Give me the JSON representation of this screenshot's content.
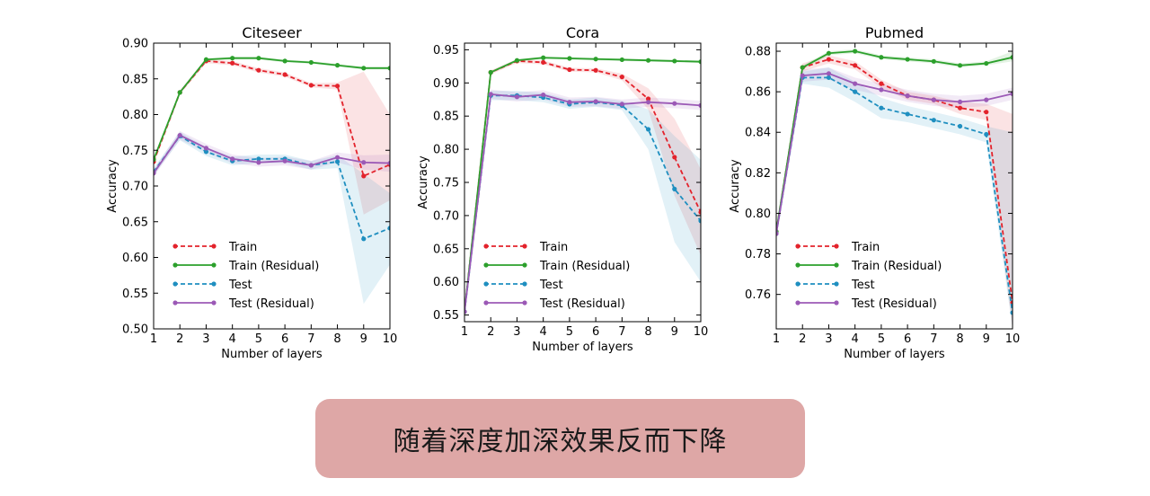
{
  "chart_data": [
    {
      "type": "line",
      "title": "Citeseer",
      "xlabel": "Number of layers",
      "ylabel": "Accuracy",
      "x": [
        1,
        2,
        3,
        4,
        5,
        6,
        7,
        8,
        9,
        10
      ],
      "xticks": [
        "1",
        "2",
        "3",
        "4",
        "5",
        "6",
        "7",
        "8",
        "9",
        "10"
      ],
      "ylim": [
        0.5,
        0.9
      ],
      "yticks": [
        0.5,
        0.55,
        0.6,
        0.65,
        0.7,
        0.75,
        0.8,
        0.85,
        0.9
      ],
      "ytick_labels": [
        "0.50",
        "0.55",
        "0.60",
        "0.65",
        "0.70",
        "0.75",
        "0.80",
        "0.85",
        "0.90"
      ],
      "legend_position": "lower-left",
      "series": [
        {
          "name": "Train",
          "color": "#e3232c",
          "style": "dashed",
          "values": [
            0.734,
            0.831,
            0.875,
            0.872,
            0.862,
            0.856,
            0.841,
            0.84,
            0.714,
            0.73
          ],
          "band_lower": [
            0.73,
            0.828,
            0.872,
            0.869,
            0.859,
            0.853,
            0.838,
            0.835,
            0.66,
            0.68
          ],
          "band_upper": [
            0.738,
            0.834,
            0.878,
            0.875,
            0.865,
            0.859,
            0.844,
            0.845,
            0.86,
            0.8
          ]
        },
        {
          "name": "Train (Residual)",
          "color": "#2ca02c",
          "style": "solid",
          "values": [
            0.737,
            0.831,
            0.877,
            0.879,
            0.879,
            0.875,
            0.873,
            0.869,
            0.865,
            0.865
          ],
          "band_lower": [
            0.735,
            0.829,
            0.875,
            0.877,
            0.877,
            0.873,
            0.871,
            0.867,
            0.863,
            0.863
          ],
          "band_upper": [
            0.739,
            0.833,
            0.879,
            0.881,
            0.881,
            0.877,
            0.875,
            0.871,
            0.867,
            0.867
          ]
        },
        {
          "name": "Test",
          "color": "#1f8fc0",
          "style": "dashed",
          "values": [
            0.72,
            0.77,
            0.748,
            0.735,
            0.738,
            0.738,
            0.729,
            0.734,
            0.626,
            0.641
          ],
          "band_lower": [
            0.715,
            0.764,
            0.742,
            0.729,
            0.732,
            0.732,
            0.723,
            0.725,
            0.535,
            0.59
          ],
          "band_upper": [
            0.725,
            0.776,
            0.754,
            0.741,
            0.744,
            0.744,
            0.735,
            0.743,
            0.717,
            0.69
          ]
        },
        {
          "name": "Test (Residual)",
          "color": "#9b59b6",
          "style": "solid",
          "values": [
            0.718,
            0.771,
            0.753,
            0.738,
            0.733,
            0.735,
            0.729,
            0.74,
            0.733,
            0.732
          ],
          "band_lower": [
            0.713,
            0.765,
            0.747,
            0.732,
            0.727,
            0.729,
            0.723,
            0.733,
            0.723,
            0.72
          ],
          "band_upper": [
            0.723,
            0.777,
            0.759,
            0.744,
            0.739,
            0.741,
            0.735,
            0.747,
            0.743,
            0.744
          ]
        }
      ]
    },
    {
      "type": "line",
      "title": "Cora",
      "xlabel": "Number of layers",
      "ylabel": "Accuracy",
      "x": [
        1,
        2,
        3,
        4,
        5,
        6,
        7,
        8,
        9,
        10
      ],
      "xticks": [
        "1",
        "2",
        "3",
        "4",
        "5",
        "6",
        "7",
        "8",
        "9",
        "10"
      ],
      "ylim": [
        0.54,
        0.96
      ],
      "yticks": [
        0.55,
        0.6,
        0.65,
        0.7,
        0.75,
        0.8,
        0.85,
        0.9,
        0.95
      ],
      "ytick_labels": [
        "0.55",
        "0.60",
        "0.65",
        "0.70",
        "0.75",
        "0.80",
        "0.85",
        "0.90",
        "0.95"
      ],
      "legend_position": "lower-left",
      "series": [
        {
          "name": "Train",
          "color": "#e3232c",
          "style": "dashed",
          "values": [
            0.555,
            0.916,
            0.933,
            0.931,
            0.92,
            0.919,
            0.909,
            0.876,
            0.788,
            0.705
          ],
          "band_lower": [
            0.552,
            0.913,
            0.93,
            0.928,
            0.917,
            0.916,
            0.904,
            0.86,
            0.73,
            0.64
          ],
          "band_upper": [
            0.558,
            0.919,
            0.936,
            0.934,
            0.923,
            0.922,
            0.914,
            0.892,
            0.846,
            0.77
          ]
        },
        {
          "name": "Train (Residual)",
          "color": "#2ca02c",
          "style": "solid",
          "values": [
            0.555,
            0.916,
            0.934,
            0.938,
            0.937,
            0.936,
            0.935,
            0.934,
            0.933,
            0.932
          ],
          "band_lower": [
            0.553,
            0.914,
            0.932,
            0.936,
            0.935,
            0.934,
            0.933,
            0.932,
            0.931,
            0.93
          ],
          "band_upper": [
            0.557,
            0.918,
            0.936,
            0.94,
            0.939,
            0.938,
            0.937,
            0.936,
            0.935,
            0.934
          ]
        },
        {
          "name": "Test",
          "color": "#1f8fc0",
          "style": "dashed",
          "values": [
            0.555,
            0.881,
            0.881,
            0.878,
            0.868,
            0.871,
            0.866,
            0.83,
            0.74,
            0.692
          ],
          "band_lower": [
            0.55,
            0.874,
            0.874,
            0.871,
            0.861,
            0.864,
            0.859,
            0.8,
            0.66,
            0.6
          ],
          "band_upper": [
            0.56,
            0.888,
            0.888,
            0.885,
            0.875,
            0.878,
            0.873,
            0.86,
            0.82,
            0.784
          ]
        },
        {
          "name": "Test (Residual)",
          "color": "#9b59b6",
          "style": "solid",
          "values": [
            0.555,
            0.883,
            0.879,
            0.882,
            0.871,
            0.872,
            0.868,
            0.871,
            0.869,
            0.866
          ],
          "band_lower": [
            0.55,
            0.876,
            0.872,
            0.875,
            0.864,
            0.865,
            0.861,
            0.864,
            0.862,
            0.859
          ],
          "band_upper": [
            0.56,
            0.89,
            0.886,
            0.889,
            0.878,
            0.879,
            0.875,
            0.878,
            0.876,
            0.873
          ]
        }
      ]
    },
    {
      "type": "line",
      "title": "Pubmed",
      "xlabel": "Number of layers",
      "ylabel": "Accuracy",
      "x": [
        1,
        2,
        3,
        4,
        5,
        6,
        7,
        8,
        9,
        10
      ],
      "xticks": [
        "1",
        "2",
        "3",
        "4",
        "5",
        "6",
        "7",
        "8",
        "9",
        "10"
      ],
      "ylim": [
        0.743,
        0.884
      ],
      "yticks": [
        0.76,
        0.78,
        0.8,
        0.82,
        0.84,
        0.86,
        0.88
      ],
      "ytick_labels": [
        "0.76",
        "0.78",
        "0.80",
        "0.82",
        "0.84",
        "0.86",
        "0.88"
      ],
      "legend_position": "lower-left",
      "series": [
        {
          "name": "Train",
          "color": "#e3232c",
          "style": "dashed",
          "values": [
            0.791,
            0.872,
            0.876,
            0.873,
            0.864,
            0.858,
            0.856,
            0.852,
            0.85,
            0.756
          ],
          "band_lower": [
            0.789,
            0.87,
            0.874,
            0.871,
            0.862,
            0.856,
            0.854,
            0.849,
            0.846,
            0.743
          ],
          "band_upper": [
            0.793,
            0.874,
            0.878,
            0.875,
            0.866,
            0.86,
            0.858,
            0.855,
            0.854,
            0.849
          ]
        },
        {
          "name": "Train (Residual)",
          "color": "#2ca02c",
          "style": "solid",
          "values": [
            0.791,
            0.872,
            0.879,
            0.88,
            0.877,
            0.876,
            0.875,
            0.873,
            0.874,
            0.877
          ],
          "band_lower": [
            0.79,
            0.871,
            0.878,
            0.879,
            0.876,
            0.875,
            0.874,
            0.872,
            0.873,
            0.875
          ],
          "band_upper": [
            0.792,
            0.873,
            0.88,
            0.881,
            0.878,
            0.877,
            0.876,
            0.874,
            0.875,
            0.88
          ]
        },
        {
          "name": "Test",
          "color": "#1f8fc0",
          "style": "dashed",
          "values": [
            0.79,
            0.867,
            0.867,
            0.86,
            0.852,
            0.849,
            0.846,
            0.843,
            0.839,
            0.751
          ],
          "band_lower": [
            0.788,
            0.864,
            0.862,
            0.855,
            0.847,
            0.845,
            0.842,
            0.839,
            0.835,
            0.743
          ],
          "band_upper": [
            0.792,
            0.87,
            0.872,
            0.865,
            0.857,
            0.853,
            0.85,
            0.847,
            0.843,
            0.84
          ]
        },
        {
          "name": "Test (Residual)",
          "color": "#9b59b6",
          "style": "solid",
          "values": [
            0.79,
            0.868,
            0.869,
            0.864,
            0.861,
            0.858,
            0.856,
            0.855,
            0.856,
            0.859
          ],
          "band_lower": [
            0.788,
            0.865,
            0.866,
            0.861,
            0.858,
            0.855,
            0.853,
            0.852,
            0.853,
            0.856
          ],
          "band_upper": [
            0.792,
            0.871,
            0.872,
            0.867,
            0.864,
            0.861,
            0.859,
            0.858,
            0.859,
            0.862
          ]
        }
      ]
    }
  ],
  "banner": {
    "text": "随着深度加深效果反而下降",
    "color": "#dea7a6"
  }
}
